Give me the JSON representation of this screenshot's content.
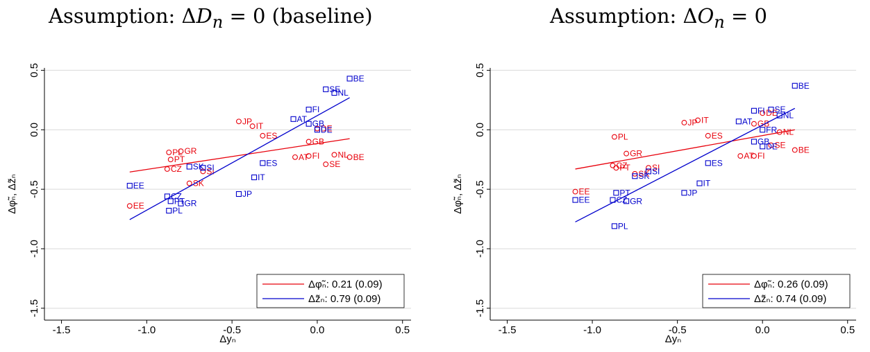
{
  "titles": {
    "left": {
      "prefix": "Assumption: Δ",
      "var": "D",
      "sub": "n",
      "suffix": " = 0 (baseline)"
    },
    "right": {
      "prefix": "Assumption: Δ",
      "var": "O",
      "sub": "n",
      "suffix": " = 0"
    }
  },
  "colors": {
    "phi": "#e8000b",
    "z": "#0000cc",
    "axis": "#000000",
    "grid": "#d9d9d9"
  },
  "chart_data": [
    {
      "type": "scatter",
      "title": "Assumption: ΔD_n = 0 (baseline)",
      "xlabel": "Δyₙ",
      "ylabel": "Δφ̃ₙ, Δz̃ₙ",
      "xlim": [
        -1.6,
        0.55
      ],
      "ylim": [
        -1.6,
        0.52
      ],
      "xticks": [
        "-1.5",
        "-1.0",
        "-0.5",
        "0.0",
        "0.5"
      ],
      "yticks": [
        "0.5",
        "0.0",
        "-0.5",
        "-1.0",
        "-1.5"
      ],
      "grid": "horizontal",
      "legend_position": "bottom-right",
      "series": [
        {
          "name": "Δφ̃ₙ: 0.21 (0.09)",
          "marker": "circle",
          "fit": {
            "x": [
              -1.1,
              0.19
            ],
            "y": [
              -0.355,
              -0.075
            ]
          },
          "points": [
            {
              "label": "EE",
              "x": -1.1,
              "y": -0.64
            },
            {
              "label": "PT",
              "x": -0.86,
              "y": -0.25
            },
            {
              "label": "PL",
              "x": -0.87,
              "y": -0.19
            },
            {
              "label": "GR",
              "x": -0.8,
              "y": -0.18
            },
            {
              "label": "CZ",
              "x": -0.88,
              "y": -0.33
            },
            {
              "label": "SK",
              "x": -0.75,
              "y": -0.45
            },
            {
              "label": "SI",
              "x": -0.67,
              "y": -0.35
            },
            {
              "label": "JP",
              "x": -0.46,
              "y": 0.07
            },
            {
              "label": "IT",
              "x": -0.38,
              "y": 0.03
            },
            {
              "label": "ES",
              "x": -0.32,
              "y": -0.05
            },
            {
              "label": "AT",
              "x": -0.13,
              "y": -0.23
            },
            {
              "label": "FI",
              "x": -0.05,
              "y": -0.22
            },
            {
              "label": "GB",
              "x": -0.05,
              "y": -0.1
            },
            {
              "label": "DE",
              "x": 0.0,
              "y": 0.01
            },
            {
              "label": "SE",
              "x": 0.05,
              "y": -0.29
            },
            {
              "label": "NL",
              "x": 0.1,
              "y": -0.21
            },
            {
              "label": "BE",
              "x": 0.19,
              "y": -0.23
            }
          ]
        },
        {
          "name": "Δz̃ₙ: 0.79 (0.09)",
          "marker": "square",
          "fit": {
            "x": [
              -1.1,
              0.19
            ],
            "y": [
              -0.755,
              0.27
            ]
          },
          "points": [
            {
              "label": "EE",
              "x": -1.1,
              "y": -0.47
            },
            {
              "label": "CZ",
              "x": -0.88,
              "y": -0.56
            },
            {
              "label": "PT",
              "x": -0.86,
              "y": -0.6
            },
            {
              "label": "GR",
              "x": -0.8,
              "y": -0.62
            },
            {
              "label": "PL",
              "x": -0.87,
              "y": -0.68
            },
            {
              "label": "SK",
              "x": -0.75,
              "y": -0.31
            },
            {
              "label": "SI",
              "x": -0.67,
              "y": -0.32
            },
            {
              "label": "JP",
              "x": -0.46,
              "y": -0.54
            },
            {
              "label": "IT",
              "x": -0.37,
              "y": -0.4
            },
            {
              "label": "ES",
              "x": -0.32,
              "y": -0.28
            },
            {
              "label": "AT",
              "x": -0.14,
              "y": 0.09
            },
            {
              "label": "FI",
              "x": -0.05,
              "y": 0.17
            },
            {
              "label": "GB",
              "x": -0.05,
              "y": 0.05
            },
            {
              "label": "DE",
              "x": 0.0,
              "y": 0.0
            },
            {
              "label": "SE",
              "x": 0.05,
              "y": 0.34
            },
            {
              "label": "NL",
              "x": 0.1,
              "y": 0.31
            },
            {
              "label": "BE",
              "x": 0.19,
              "y": 0.43
            }
          ]
        }
      ]
    },
    {
      "type": "scatter",
      "title": "Assumption: ΔO_n = 0",
      "xlabel": "Δyₙ",
      "ylabel": "Δφ̃ₙ, Δz̃ₙ",
      "xlim": [
        -1.6,
        0.55
      ],
      "ylim": [
        -1.6,
        0.52
      ],
      "xticks": [
        "-1.5",
        "-1.0",
        "-0.5",
        "0.0",
        "0.5"
      ],
      "yticks": [
        "0.5",
        "0.0",
        "-0.5",
        "-1.0",
        "-1.5"
      ],
      "grid": "horizontal",
      "legend_position": "bottom-right",
      "series": [
        {
          "name": "Δφ̃ₙ: 0.26 (0.09)",
          "marker": "circle",
          "fit": {
            "x": [
              -1.1,
              0.19
            ],
            "y": [
              -0.33,
              0.0
            ]
          },
          "points": [
            {
              "label": "EE",
              "x": -1.1,
              "y": -0.52
            },
            {
              "label": "PL",
              "x": -0.87,
              "y": -0.06
            },
            {
              "label": "GR",
              "x": -0.8,
              "y": -0.2
            },
            {
              "label": "CZ",
              "x": -0.88,
              "y": -0.3
            },
            {
              "label": "PT",
              "x": -0.86,
              "y": -0.32
            },
            {
              "label": "SK",
              "x": -0.75,
              "y": -0.37
            },
            {
              "label": "SI",
              "x": -0.67,
              "y": -0.32
            },
            {
              "label": "JP",
              "x": -0.46,
              "y": 0.06
            },
            {
              "label": "IT",
              "x": -0.38,
              "y": 0.08
            },
            {
              "label": "ES",
              "x": -0.32,
              "y": -0.05
            },
            {
              "label": "AT",
              "x": -0.13,
              "y": -0.22
            },
            {
              "label": "FI",
              "x": -0.05,
              "y": -0.22
            },
            {
              "label": "GB",
              "x": -0.05,
              "y": 0.05
            },
            {
              "label": "DE",
              "x": 0.0,
              "y": 0.14
            },
            {
              "label": "SE",
              "x": 0.05,
              "y": -0.13
            },
            {
              "label": "NL",
              "x": 0.1,
              "y": -0.02
            },
            {
              "label": "BE",
              "x": 0.19,
              "y": -0.17
            }
          ]
        },
        {
          "name": "Δz̃ₙ: 0.74 (0.09)",
          "marker": "square",
          "fit": {
            "x": [
              -1.1,
              0.19
            ],
            "y": [
              -0.775,
              0.18
            ]
          },
          "points": [
            {
              "label": "EE",
              "x": -1.1,
              "y": -0.59
            },
            {
              "label": "PT",
              "x": -0.86,
              "y": -0.53
            },
            {
              "label": "CZ",
              "x": -0.88,
              "y": -0.59
            },
            {
              "label": "GR",
              "x": -0.8,
              "y": -0.6
            },
            {
              "label": "PL",
              "x": -0.87,
              "y": -0.81
            },
            {
              "label": "SK",
              "x": -0.75,
              "y": -0.39
            },
            {
              "label": "SI",
              "x": -0.67,
              "y": -0.35
            },
            {
              "label": "JP",
              "x": -0.46,
              "y": -0.53
            },
            {
              "label": "IT",
              "x": -0.37,
              "y": -0.45
            },
            {
              "label": "ES",
              "x": -0.32,
              "y": -0.28
            },
            {
              "label": "AT",
              "x": -0.14,
              "y": 0.07
            },
            {
              "label": "FI",
              "x": -0.05,
              "y": 0.16
            },
            {
              "label": "GB",
              "x": -0.05,
              "y": -0.1
            },
            {
              "label": "FR",
              "x": 0.0,
              "y": 0.0
            },
            {
              "label": "DE",
              "x": 0.0,
              "y": -0.14
            },
            {
              "label": "SE",
              "x": 0.05,
              "y": 0.17
            },
            {
              "label": "NL",
              "x": 0.1,
              "y": 0.12
            },
            {
              "label": "BE",
              "x": 0.19,
              "y": 0.37
            }
          ]
        }
      ]
    }
  ]
}
